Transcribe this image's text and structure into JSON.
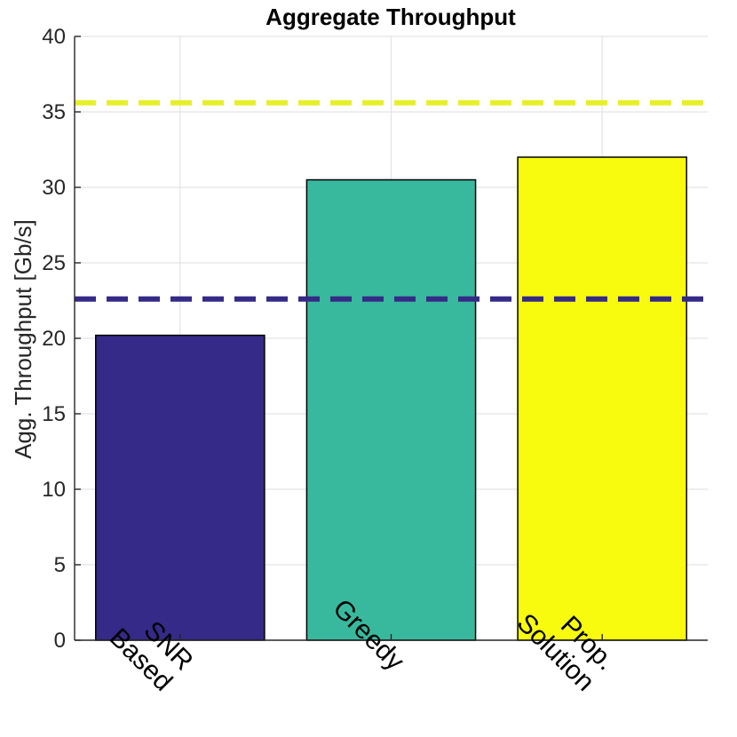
{
  "chart_data": {
    "type": "bar",
    "title": "Aggregate Throughput",
    "xlabel": "",
    "ylabel": "Agg. Throughput [Gb/s]",
    "categories": [
      [
        "SNR",
        "Based"
      ],
      [
        "Greedy"
      ],
      [
        "Prop.",
        "Solution"
      ]
    ],
    "values": [
      20.2,
      30.5,
      32.0
    ],
    "bar_colors": [
      "#352a87",
      "#38b99e",
      "#f9fb0e"
    ],
    "ylim": [
      0,
      40
    ],
    "yticks": [
      0,
      5,
      10,
      15,
      20,
      25,
      30,
      35,
      40
    ],
    "grid": true,
    "reference_lines": [
      {
        "value": 22.6,
        "color": "#352a87",
        "style": "dashed"
      },
      {
        "value": 35.6,
        "color": "#e6f02a",
        "style": "dashed"
      }
    ]
  }
}
